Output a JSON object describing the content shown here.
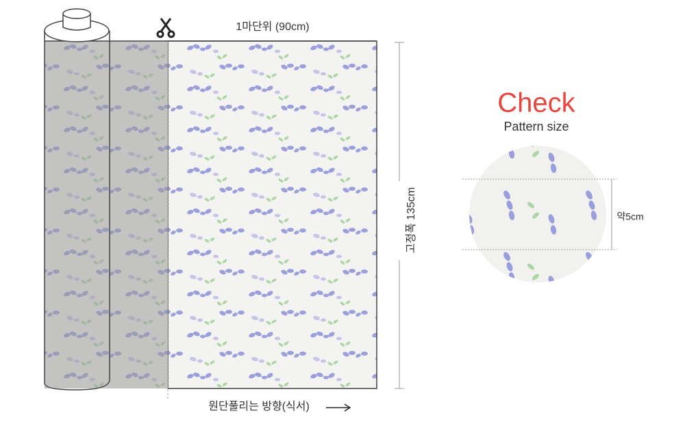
{
  "dimension_top": "1마단위 (90cm)",
  "dimension_side": "고정폭 135cm",
  "check": {
    "title": "Check",
    "subtitle": "Pattern size",
    "measure": "약5cm"
  },
  "direction": "원단풀리는 방향(식서)"
}
